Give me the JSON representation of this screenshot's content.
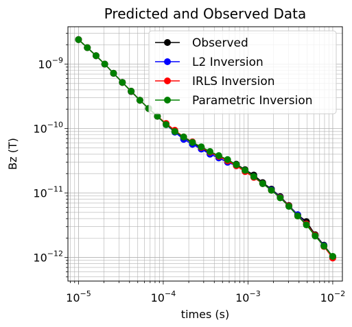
{
  "chart_data": {
    "type": "line",
    "title": "Predicted and Observed Data",
    "xlabel": "times (s)",
    "ylabel": "Bz (T)",
    "xscale": "log",
    "yscale": "log",
    "xlim": [
      7.5e-06,
      0.013
    ],
    "ylim": [
      4.3e-13,
      3.8e-09
    ],
    "grid": true,
    "legend_position": "top-right",
    "x_ticks": [
      {
        "value": 1e-05,
        "base": "10",
        "exp": "−5"
      },
      {
        "value": 0.0001,
        "base": "10",
        "exp": "−4"
      },
      {
        "value": 0.001,
        "base": "10",
        "exp": "−3"
      },
      {
        "value": 0.01,
        "base": "10",
        "exp": "−2"
      }
    ],
    "y_ticks": [
      {
        "value": 1e-12,
        "base": "10",
        "exp": "−12"
      },
      {
        "value": 1e-11,
        "base": "10",
        "exp": "−11"
      },
      {
        "value": 1e-10,
        "base": "10",
        "exp": "−10"
      },
      {
        "value": 1e-09,
        "base": "10",
        "exp": "−9"
      }
    ],
    "x": [
      1e-05,
      1.27e-05,
      1.61e-05,
      2.04e-05,
      2.59e-05,
      3.29e-05,
      4.18e-05,
      5.3e-05,
      6.72e-05,
      8.53e-05,
      0.000108,
      0.000137,
      0.000174,
      0.000221,
      0.000281,
      0.000356,
      0.000452,
      0.000574,
      0.000728,
      0.000924,
      0.00117,
      0.00149,
      0.00189,
      0.0024,
      0.00304,
      0.00386,
      0.00489,
      0.00621,
      0.00788,
      0.01
    ],
    "series": [
      {
        "name": "Observed",
        "color": "#000000",
        "values": [
          2.4e-09,
          1.8e-09,
          1.35e-09,
          1e-09,
          7.2e-10,
          5.2e-10,
          3.75e-10,
          2.75e-10,
          2.05e-10,
          1.55e-10,
          1.18e-10,
          9e-11,
          7.2e-11,
          6e-11,
          5e-11,
          4.2e-11,
          3.7e-11,
          3.2e-11,
          2.8e-11,
          2.3e-11,
          1.9e-11,
          1.45e-11,
          1.15e-11,
          8.8e-12,
          6.4e-12,
          4.6e-12,
          3.6e-12,
          2.25e-12,
          1.55e-12,
          1.03e-12
        ]
      },
      {
        "name": "L2 Inversion",
        "color": "#0000ff",
        "values": [
          2.4e-09,
          1.8e-09,
          1.35e-09,
          1e-09,
          7.2e-10,
          5.2e-10,
          3.8e-10,
          2.75e-10,
          2.05e-10,
          1.55e-10,
          1.15e-10,
          8.8e-11,
          6.8e-11,
          5.7e-11,
          4.8e-11,
          4e-11,
          3.5e-11,
          3e-11,
          2.65e-11,
          2.2e-11,
          1.8e-11,
          1.4e-11,
          1.12e-11,
          8.6e-12,
          6.3e-12,
          4.6e-12,
          3.3e-12,
          2.2e-12,
          1.52e-12,
          1.02e-12
        ]
      },
      {
        "name": "IRLS Inversion",
        "color": "#ff0000",
        "values": [
          2.4e-09,
          1.8e-09,
          1.35e-09,
          1e-09,
          7.2e-10,
          5.2e-10,
          3.8e-10,
          2.75e-10,
          2.05e-10,
          1.55e-10,
          1.2e-10,
          9.4e-11,
          7.4e-11,
          6.2e-11,
          5.1e-11,
          4.3e-11,
          3.7e-11,
          3.15e-11,
          2.65e-11,
          2.15e-11,
          1.75e-11,
          1.4e-11,
          1.1e-11,
          8.5e-12,
          6.3e-12,
          4.4e-12,
          3.3e-12,
          2.2e-12,
          1.48e-12,
          9.8e-13
        ]
      },
      {
        "name": "Parametric Inversion",
        "color": "#008000",
        "values": [
          2.4e-09,
          1.8e-09,
          1.35e-09,
          1e-09,
          7.2e-10,
          5.2e-10,
          3.8e-10,
          2.75e-10,
          2.05e-10,
          1.55e-10,
          1.15e-10,
          9e-11,
          7.4e-11,
          6.1e-11,
          5.2e-11,
          4.4e-11,
          3.8e-11,
          3.3e-11,
          2.75e-11,
          2.25e-11,
          1.8e-11,
          1.4e-11,
          1.1e-11,
          8.4e-12,
          6.2e-12,
          4.4e-12,
          3.2e-12,
          2.15e-12,
          1.5e-12,
          1.04e-12
        ]
      }
    ]
  }
}
